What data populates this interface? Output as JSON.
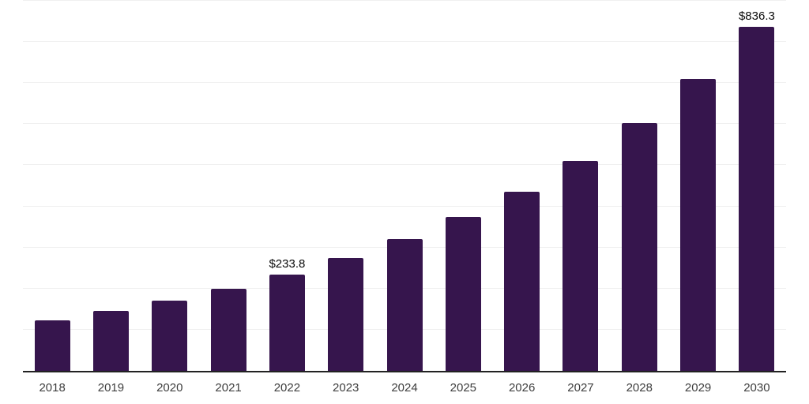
{
  "chart_data": {
    "type": "bar",
    "title": "",
    "xlabel": "",
    "ylabel": "",
    "categories": [
      "2018",
      "2019",
      "2020",
      "2021",
      "2022",
      "2023",
      "2024",
      "2025",
      "2026",
      "2027",
      "2028",
      "2029",
      "2030"
    ],
    "values": [
      123.0,
      145.5,
      170.0,
      199.5,
      233.8,
      273.5,
      320.5,
      374.0,
      436.0,
      510.5,
      602.5,
      710.0,
      836.3
    ],
    "annotations": [
      {
        "category": "2022",
        "text": "$233.8"
      },
      {
        "category": "2030",
        "text": "$836.3"
      }
    ],
    "ylim": [
      0,
      900
    ],
    "gridline_step": 100,
    "grid": "horizontal-only",
    "legend": "none",
    "y_axis_labels_visible": false
  },
  "colors": {
    "bar": "#36154D",
    "gridline": "#f0f0f0",
    "axis_line": "#222222",
    "tick_label": "#3d3d3d",
    "value_label": "#0a0a0a",
    "background": "#ffffff"
  }
}
